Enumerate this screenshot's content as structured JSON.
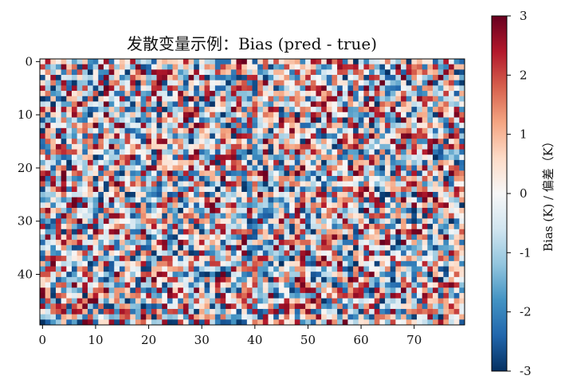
{
  "chart_data": {
    "type": "heatmap",
    "title": "发散变量示例：Bias (pred - true)",
    "xlabel": "",
    "ylabel": "",
    "rows": 50,
    "cols": 80,
    "x_ticks": [
      "0",
      "10",
      "20",
      "30",
      "40",
      "50",
      "60",
      "70"
    ],
    "y_ticks": [
      "0",
      "10",
      "20",
      "30",
      "40"
    ],
    "xlim": [
      -0.5,
      79.5
    ],
    "ylim": [
      49.5,
      -0.5
    ],
    "colorbar": {
      "label": "Bias (K) / 偏差（K）",
      "ticks": [
        "-3",
        "-2",
        "-1",
        "0",
        "1",
        "2",
        "3"
      ],
      "vmin": -3,
      "vmax": 3,
      "colormap": "RdBu_r"
    },
    "value_range": [
      -3,
      3
    ],
    "note_values": "random field, values drawn approximately uniformly in [-3,3]; cell values not individually legible"
  },
  "colors": {
    "low": "#053061",
    "mid": "#f7f7f7",
    "high": "#67001f",
    "axes": "#000000"
  }
}
